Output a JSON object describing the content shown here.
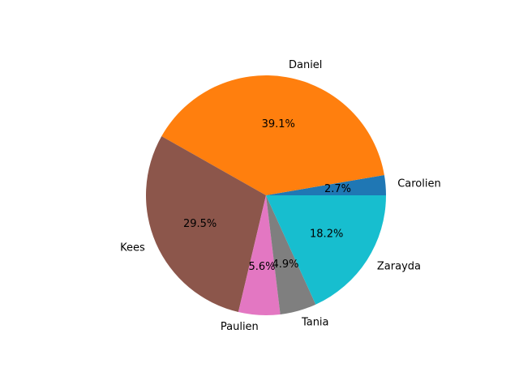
{
  "chart_data": {
    "type": "pie",
    "title": "",
    "start_angle_deg": 0,
    "direction": "counterclockwise",
    "autopct_format": "%.1f%%",
    "slices": [
      {
        "label": "Carolien",
        "value": 2.7,
        "pct_text": "2.7%",
        "color": "#1f77b4"
      },
      {
        "label": "Daniel",
        "value": 39.1,
        "pct_text": "39.1%",
        "color": "#ff7f0e"
      },
      {
        "label": "Kees",
        "value": 29.5,
        "pct_text": "29.5%",
        "color": "#8c564b"
      },
      {
        "label": "Paulien",
        "value": 5.6,
        "pct_text": "5.6%",
        "color": "#e377c2"
      },
      {
        "label": "Tania",
        "value": 4.9,
        "pct_text": "4.9%",
        "color": "#7f7f7f"
      },
      {
        "label": "Zarayda",
        "value": 18.2,
        "pct_text": "18.2%",
        "color": "#17becf"
      }
    ]
  }
}
